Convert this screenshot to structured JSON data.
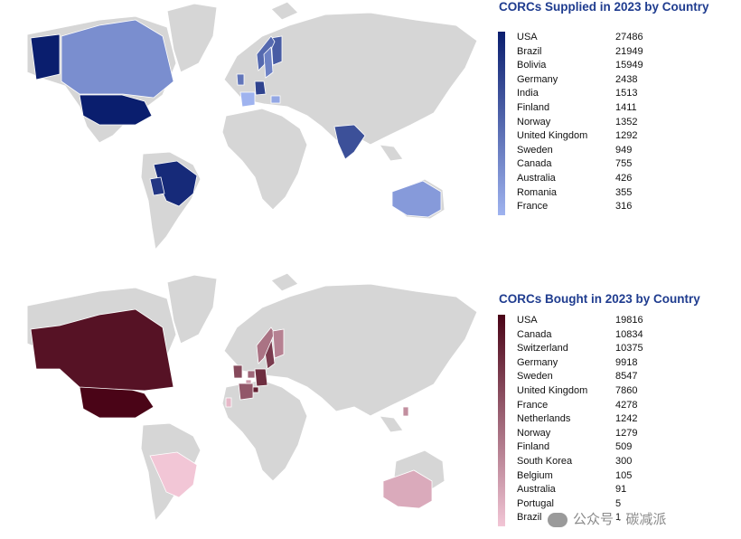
{
  "chart_data": [
    {
      "type": "choropleth-map",
      "title": "CORCs Supplied in 2023 by Country",
      "colors": {
        "max": "#0a1e6e",
        "min": "#9fb3ef",
        "nodata": "#d6d6d6"
      },
      "legend_position": "right",
      "categories": [
        "USA",
        "Brazil",
        "Bolivia",
        "Germany",
        "India",
        "Finland",
        "Norway",
        "United Kingdom",
        "Sweden",
        "Canada",
        "Australia",
        "Romania",
        "France"
      ],
      "values": [
        27486,
        21949,
        15949,
        2438,
        1513,
        1411,
        1352,
        1292,
        949,
        755,
        426,
        355,
        316
      ]
    },
    {
      "type": "choropleth-map",
      "title": "CORCs Bought in 2023 by Country",
      "colors": {
        "max": "#4a0417",
        "min": "#f2c6d6",
        "nodata": "#d6d6d6"
      },
      "legend_position": "right",
      "categories": [
        "USA",
        "Canada",
        "Switzerland",
        "Germany",
        "Sweden",
        "United Kingdom",
        "France",
        "Netherlands",
        "Norway",
        "Finland",
        "South Korea",
        "Belgium",
        "Australia",
        "Portugal",
        "Brazil"
      ],
      "values": [
        19816,
        10834,
        10375,
        9918,
        8547,
        7860,
        4278,
        1242,
        1279,
        509,
        300,
        105,
        91,
        5,
        1
      ]
    }
  ],
  "watermark": {
    "text": "公众号 · 碳减派"
  }
}
